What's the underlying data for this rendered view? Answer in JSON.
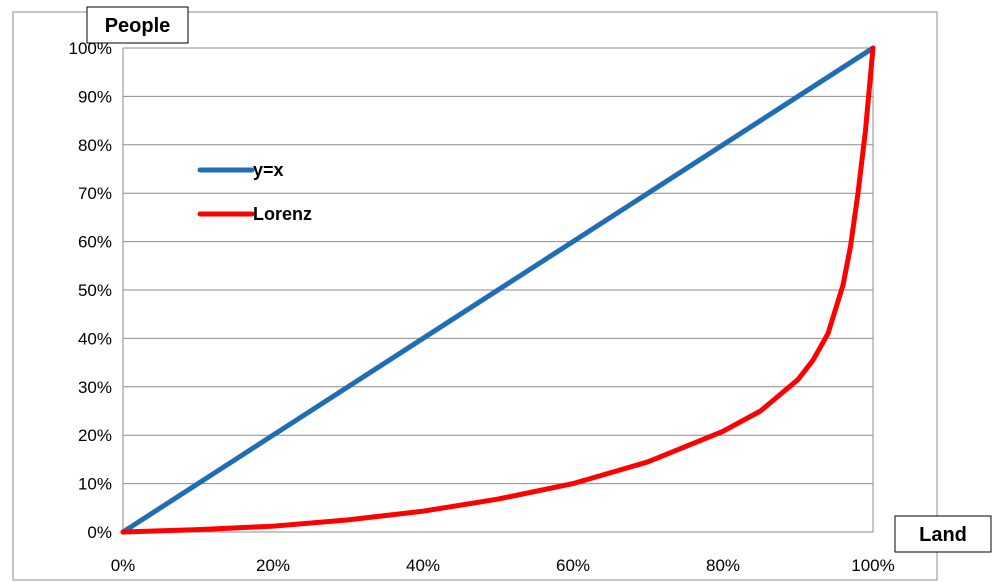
{
  "chart_data": {
    "type": "line",
    "title": "",
    "xlabel": "Land",
    "ylabel": "People",
    "xlim": [
      0,
      100
    ],
    "ylim": [
      0,
      100
    ],
    "x_ticks": [
      "0%",
      "20%",
      "40%",
      "60%",
      "80%",
      "100%"
    ],
    "y_ticks": [
      "0%",
      "10%",
      "20%",
      "30%",
      "40%",
      "50%",
      "60%",
      "70%",
      "80%",
      "90%",
      "100%"
    ],
    "grid": "horizontal",
    "legend_position": "top-left",
    "series": [
      {
        "name": "y=x",
        "color": "#1f6eb5",
        "x": [
          0,
          100
        ],
        "y": [
          0,
          100
        ]
      },
      {
        "name": "Lorenz",
        "color": "#ff0000",
        "x": [
          0,
          10,
          20,
          30,
          40,
          50,
          60,
          70,
          80,
          85,
          90,
          92,
          94,
          96,
          97,
          98,
          99,
          100
        ],
        "y": [
          0,
          0.5,
          1.2,
          2.5,
          4.3,
          6.8,
          10,
          14.5,
          20.8,
          25,
          31.5,
          35.5,
          41,
          51,
          59,
          70,
          83,
          100
        ]
      }
    ]
  }
}
